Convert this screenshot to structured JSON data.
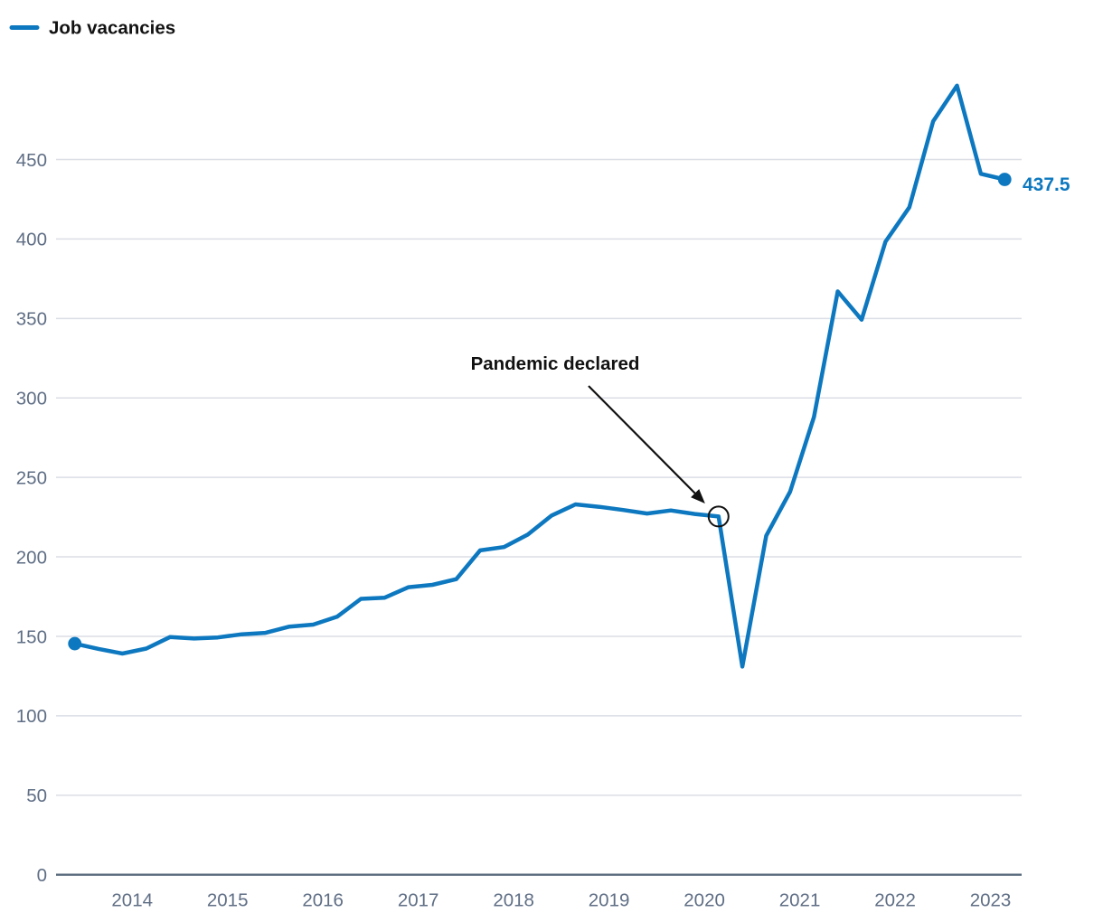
{
  "legend": {
    "label": "Job vacancies"
  },
  "chart_data": {
    "type": "line",
    "title": "",
    "legend_position": "top-left",
    "grid": "horizontal",
    "yticks": [
      0,
      50,
      100,
      150,
      200,
      250,
      300,
      350,
      400,
      450
    ],
    "ylim": [
      0,
      520
    ],
    "x_axis_year_labels": [
      "2014",
      "2015",
      "2016",
      "2017",
      "2018",
      "2019",
      "2020",
      "2021",
      "2022",
      "2023"
    ],
    "x_quarters": [
      "2013 Q2",
      "2013 Q3",
      "2013 Q4",
      "2014 Q1",
      "2014 Q2",
      "2014 Q3",
      "2014 Q4",
      "2015 Q1",
      "2015 Q2",
      "2015 Q3",
      "2015 Q4",
      "2016 Q1",
      "2016 Q2",
      "2016 Q3",
      "2016 Q4",
      "2017 Q1",
      "2017 Q2",
      "2017 Q3",
      "2017 Q4",
      "2018 Q1",
      "2018 Q2",
      "2018 Q3",
      "2018 Q4",
      "2019 Q1",
      "2019 Q2",
      "2019 Q3",
      "2019 Q4",
      "2020 Q1",
      "2020 Q2",
      "2020 Q3",
      "2020 Q4",
      "2021 Q1",
      "2021 Q2",
      "2021 Q3",
      "2021 Q4",
      "2022 Q1",
      "2022 Q2",
      "2022 Q3",
      "2022 Q4",
      "2023 Q1"
    ],
    "series": [
      {
        "name": "Job vacancies",
        "values": [
          145.4,
          142.1,
          139.2,
          142.3,
          149.6,
          148.6,
          149.3,
          151.3,
          152.2,
          156.1,
          157.4,
          162.3,
          173.6,
          174.3,
          180.9,
          182.4,
          186.0,
          204.1,
          206.2,
          214.0,
          226.0,
          233.0,
          231.5,
          229.5,
          227.3,
          229.2,
          227.0,
          225.4,
          131.0,
          213.3,
          241.0,
          288.0,
          367.0,
          349.2,
          398.3,
          420.0,
          474.0,
          496.5,
          441.0,
          437.5
        ]
      }
    ],
    "annotation": {
      "label": "Pandemic declared",
      "point_quarter": "2020 Q1",
      "point_index": 27,
      "point_value": 225.4
    },
    "end_label": {
      "text": "437.5"
    },
    "colors": {
      "line": "#0d78bf",
      "grid": "#dcdee6",
      "axis_line": "#5a6a7e",
      "axis_text": "#5f6e85",
      "annotation": "#111111",
      "legend_text": "#121212",
      "end_label": "#0d78bf"
    }
  }
}
